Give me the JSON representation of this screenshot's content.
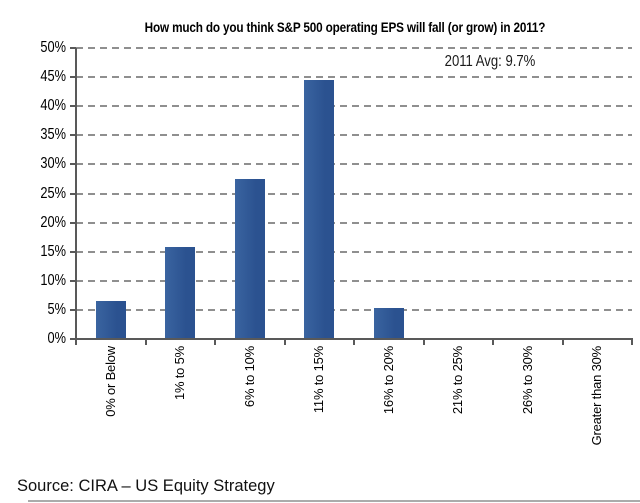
{
  "chart_data": {
    "type": "bar",
    "title": "How much do you think S&P 500 operating EPS will fall (or grow) in 2011?",
    "annotation": "2011 Avg: 9.7%",
    "categories": [
      "0% or Below",
      "1% to 5%",
      "6% to 10%",
      "11% to 15%",
      "16% to 20%",
      "21% to 25%",
      "26% to 30%",
      "Greater than 30%"
    ],
    "values": [
      6.5,
      15.8,
      27.5,
      44.5,
      5.4,
      0,
      0,
      0
    ],
    "xlabel": "",
    "ylabel": "",
    "ylim": [
      0,
      50
    ],
    "ytick_labels": [
      "50%",
      "45%",
      "40%",
      "35%",
      "30%",
      "25%",
      "20%",
      "15%",
      "10%",
      "5%",
      "0%"
    ],
    "grid": "horizontal-dashed",
    "legend": "none",
    "bar_color": "#2d5591",
    "gridline_color": "#8f8f8f",
    "axis_color": "#595959"
  },
  "source_line": "Source: CIRA – US Equity Strategy"
}
